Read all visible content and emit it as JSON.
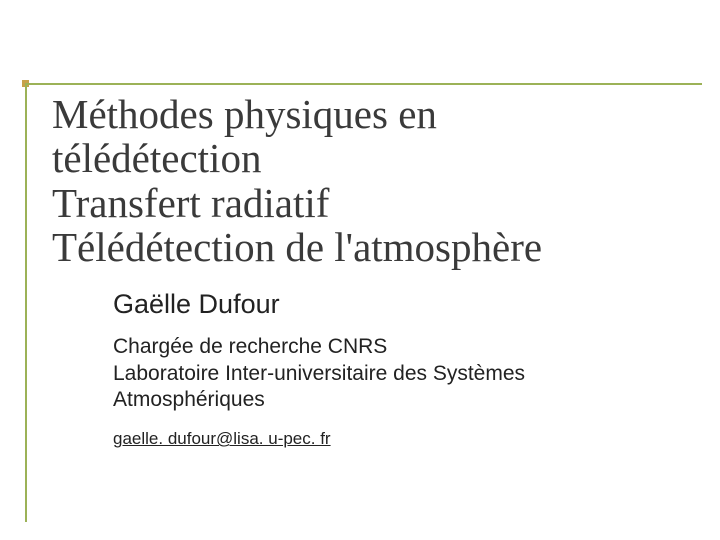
{
  "colors": {
    "rule": "#9cb257",
    "square": "#c7a24a",
    "title_text": "#3a3a3a",
    "body_text": "#222222",
    "background": "#ffffff"
  },
  "title": {
    "lines": [
      "Méthodes physiques en",
      "télédétection",
      "Transfert radiatif",
      "Télédétection de l'atmosphère"
    ],
    "font_family": "Times New Roman",
    "font_size_pt": 31
  },
  "author": {
    "name": "Gaëlle Dufour",
    "font_size_pt": 20
  },
  "affiliation": {
    "lines": [
      "Chargée de recherche CNRS",
      "Laboratoire Inter-universitaire des Systèmes",
      "Atmosphériques"
    ],
    "font_size_pt": 16
  },
  "email": {
    "text": "gaelle. dufour@lisa. u-pec. fr",
    "font_size_pt": 13,
    "underline": true
  }
}
